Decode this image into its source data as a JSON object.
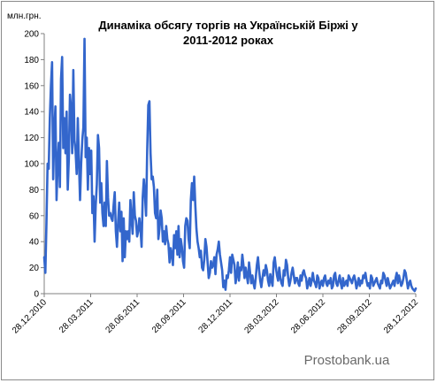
{
  "chart_data": {
    "type": "line",
    "title_lines": [
      "Динаміка обсягу торгів на Українській Біржі у",
      "2011-2012  роках"
    ],
    "ylabel": "млн.грн.",
    "xlabel": "",
    "ylim": [
      0,
      200
    ],
    "yticks": [
      "0",
      "20",
      "40",
      "60",
      "80",
      "100",
      "120",
      "140",
      "160",
      "180",
      "200"
    ],
    "xticks": [
      "28.12.2010",
      "28.03.2011",
      "28.06.2011",
      "28.09.2011",
      "28.12.2011",
      "28.03.2012",
      "28.06.2012",
      "28.09.2012",
      "28.12.2012"
    ],
    "grid": false,
    "legend": "none",
    "line_color": "#3366cc",
    "series": [
      {
        "values": [
          28,
          16,
          55,
          100,
          96,
          135,
          160,
          178,
          88,
          125,
          144,
          72,
          100,
          116,
          82,
          165,
          182,
          112,
          135,
          108,
          140,
          80,
          104,
          153,
          142,
          108,
          172,
          118,
          110,
          92,
          135,
          102,
          72,
          100,
          118,
          128,
          196,
          105,
          120,
          80,
          112,
          92,
          110,
          62,
          75,
          40,
          68,
          84,
          122,
          112,
          70,
          85,
          62,
          52,
          70,
          52,
          102,
          74,
          60,
          62,
          58,
          56,
          68,
          78,
          48,
          36,
          55,
          70,
          48,
          63,
          25,
          58,
          28,
          48,
          42,
          48,
          40,
          72,
          58,
          46,
          78,
          60,
          56,
          44,
          48,
          58,
          50,
          36,
          74,
          88,
          76,
          60,
          110,
          145,
          148,
          108,
          88,
          90,
          82,
          62,
          58,
          80,
          42,
          50,
          64,
          58,
          40,
          48,
          38,
          52,
          42,
          38,
          24,
          35,
          30,
          22,
          45,
          35,
          48,
          30,
          52,
          28,
          42,
          36,
          25,
          20,
          52,
          58,
          56,
          42,
          35,
          72,
          85,
          72,
          90,
          68,
          50,
          40,
          35,
          28,
          33,
          20,
          18,
          26,
          42,
          36,
          24,
          12,
          16,
          25,
          20,
          22,
          28,
          15,
          30,
          34,
          40,
          30,
          24,
          18,
          5,
          10,
          3,
          14,
          12,
          18,
          28,
          16,
          30,
          26,
          22,
          8,
          14,
          24,
          10,
          20,
          18,
          30,
          22,
          12,
          20,
          14,
          8,
          24,
          16,
          8,
          14,
          8,
          4,
          12,
          22,
          28,
          18,
          10,
          5,
          12,
          18,
          14,
          22,
          18,
          10,
          6,
          15,
          10,
          6,
          24,
          28,
          20,
          14,
          10,
          20,
          12,
          8,
          6,
          18,
          14,
          26,
          22,
          12,
          6,
          10,
          16,
          20,
          14,
          8,
          12,
          12,
          8,
          6,
          14,
          10,
          16,
          18,
          14,
          12,
          4,
          8,
          12,
          6,
          10,
          16,
          10,
          8,
          5,
          14,
          12,
          4,
          8,
          10,
          6,
          12,
          14,
          8,
          6,
          10,
          8,
          12,
          4,
          6,
          14,
          16,
          8,
          6,
          10,
          14,
          8,
          4,
          12,
          6,
          8,
          10,
          6,
          14,
          12,
          10,
          8,
          12,
          14,
          10,
          4,
          8,
          12,
          6,
          10,
          8,
          14,
          12,
          16,
          10,
          6,
          8,
          4,
          14,
          12,
          6,
          8,
          10,
          12,
          8,
          6,
          4,
          10,
          8,
          16,
          14,
          10,
          6,
          12,
          8,
          4,
          6,
          8,
          10,
          6,
          12,
          16,
          8,
          14,
          10,
          6,
          8,
          12,
          18,
          16,
          10,
          4,
          8,
          10,
          6,
          4,
          3,
          2,
          4
        ]
      }
    ]
  },
  "watermark": "Prostobank.ua"
}
